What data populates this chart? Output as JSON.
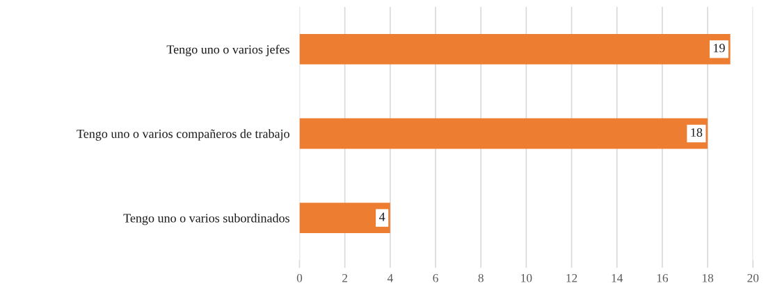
{
  "chart_data": {
    "type": "bar",
    "orientation": "horizontal",
    "categories": [
      "Tengo uno o varios jefes",
      "Tengo uno o varios compañeros de trabajo",
      "Tengo uno o varios subordinados"
    ],
    "values": [
      19,
      18,
      4
    ],
    "color": "#ed7d31",
    "xlim": [
      0,
      20
    ],
    "xticks": [
      0,
      2,
      4,
      6,
      8,
      10,
      12,
      14,
      16,
      18,
      20
    ],
    "grid": "x",
    "data_labels": true,
    "legend": false
  }
}
